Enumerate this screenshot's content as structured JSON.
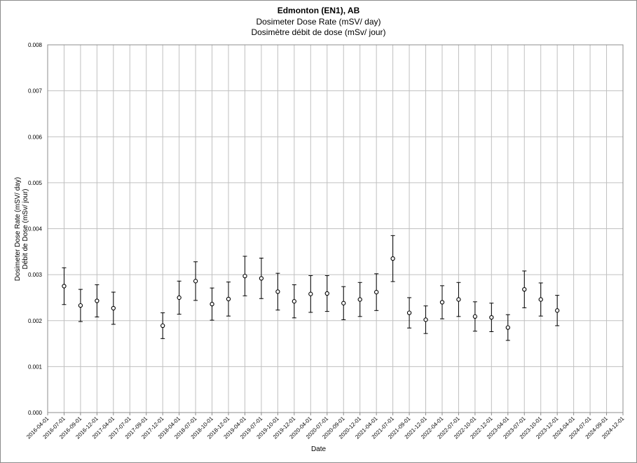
{
  "chart_data": {
    "type": "scatter",
    "title": "Edmonton (EN1), AB",
    "subtitle": [
      "Dosimeter Dose Rate (mSV/ day)",
      "Dosimètre débit de dose (mSv/ jour)"
    ],
    "xlabel": "Date",
    "ylabel": [
      "Dosimeter Dose Rate (mSV/ day)",
      "Débit de Dose (mSv/ jour)"
    ],
    "ylim": [
      0,
      0.008
    ],
    "yticks": [
      "0.000",
      "0.001",
      "0.002",
      "0.003",
      "0.004",
      "0.005",
      "0.006",
      "0.007",
      "0.008"
    ],
    "xticks": [
      "2016-04-01",
      "2016-07-01",
      "2016-09-01",
      "2016-12-01",
      "2017-04-01",
      "2017-07-01",
      "2017-09-01",
      "2017-12-01",
      "2018-04-01",
      "2018-07-01",
      "2018-10-01",
      "2018-12-01",
      "2019-04-01",
      "2019-07-01",
      "2019-10-01",
      "2019-12-01",
      "2020-04-01",
      "2020-07-01",
      "2020-09-01",
      "2020-12-01",
      "2021-04-01",
      "2021-07-01",
      "2021-09-01",
      "2021-12-01",
      "2022-04-01",
      "2022-07-01",
      "2022-10-01",
      "2022-12-01",
      "2023-04-01",
      "2023-07-01",
      "2023-10-01",
      "2023-12-01",
      "2024-04-01",
      "2024-07-01",
      "2024-09-01",
      "2024-12-01"
    ],
    "grid": true,
    "legend": "none",
    "colors": {
      "marker": "#000000",
      "grid": "#c0c0c0",
      "axis": "#8c8c8c"
    },
    "series": [
      {
        "x": [
          "2016-07-01",
          "2016-09-01",
          "2016-12-01",
          "2017-04-01",
          "2017-12-01",
          "2018-04-01",
          "2018-07-01",
          "2018-10-01",
          "2018-12-01",
          "2019-04-01",
          "2019-07-01",
          "2019-10-01",
          "2019-12-01",
          "2020-04-01",
          "2020-07-01",
          "2020-09-01",
          "2020-12-01",
          "2021-04-01",
          "2021-07-01",
          "2021-09-01",
          "2021-12-01",
          "2022-04-01",
          "2022-07-01",
          "2022-10-01",
          "2022-12-01",
          "2023-04-01",
          "2023-07-01",
          "2023-10-01",
          "2023-12-01"
        ],
        "y": [
          0.00275,
          0.00233,
          0.00243,
          0.00227,
          0.00189,
          0.0025,
          0.00286,
          0.00236,
          0.00247,
          0.00297,
          0.00292,
          0.00263,
          0.00242,
          0.00258,
          0.00259,
          0.00238,
          0.00246,
          0.00262,
          0.00335,
          0.00217,
          0.00202,
          0.0024,
          0.00246,
          0.00209,
          0.00207,
          0.00185,
          0.00268,
          0.00246,
          0.00222
        ],
        "err": [
          0.0004,
          0.00035,
          0.00035,
          0.00035,
          0.00028,
          0.00036,
          0.00042,
          0.00035,
          0.00037,
          0.00043,
          0.00044,
          0.0004,
          0.00036,
          0.0004,
          0.00039,
          0.00036,
          0.00037,
          0.0004,
          0.0005,
          0.00033,
          0.0003,
          0.00036,
          0.00037,
          0.00032,
          0.00031,
          0.00028,
          0.0004,
          0.00036,
          0.00033
        ]
      }
    ]
  }
}
